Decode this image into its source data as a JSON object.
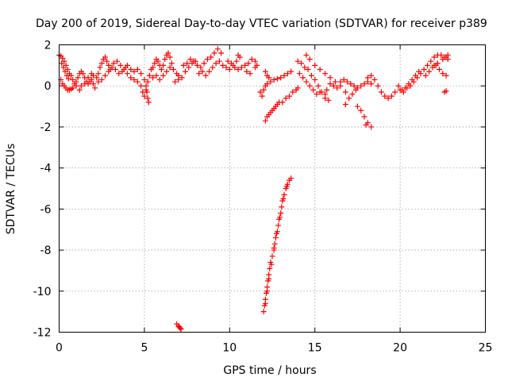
{
  "chart_data": {
    "type": "scatter",
    "title": "Day 200 of 2019, Sidereal Day-to-day VTEC variation (SDTVAR) for receiver p389",
    "xlabel": "GPS time / hours",
    "ylabel": "SDTVAR / TECUs",
    "xlim": [
      0,
      25
    ],
    "ylim": [
      -12,
      2
    ],
    "xticks": [
      "0",
      "5",
      "10",
      "15",
      "20",
      "25"
    ],
    "xtick_values": [
      0,
      5,
      10,
      15,
      20,
      25
    ],
    "yticks": [
      "2",
      "0",
      "-2",
      "-4",
      "-6",
      "-8",
      "-10",
      "-12"
    ],
    "ytick_values": [
      2,
      0,
      -2,
      -4,
      -6,
      -8,
      -10,
      -12
    ],
    "grid": true,
    "marker": "+",
    "color": "#ff0000",
    "series": [
      {
        "name": "SDTVAR",
        "points": [
          [
            0.0,
            1.5
          ],
          [
            0.1,
            1.45
          ],
          [
            0.2,
            1.35
          ],
          [
            0.3,
            1.2
          ],
          [
            0.4,
            1.0
          ],
          [
            0.5,
            0.8
          ],
          [
            0.6,
            0.6
          ],
          [
            0.7,
            0.5
          ],
          [
            0.8,
            0.3
          ],
          [
            0.9,
            0.1
          ],
          [
            1.0,
            0.0
          ],
          [
            0.1,
            0.3
          ],
          [
            0.2,
            0.1
          ],
          [
            0.3,
            0.0
          ],
          [
            0.4,
            -0.1
          ],
          [
            0.5,
            -0.2
          ],
          [
            0.6,
            -0.2
          ],
          [
            0.7,
            -0.15
          ],
          [
            0.8,
            -0.1
          ],
          [
            0.15,
            1.1
          ],
          [
            0.25,
            0.9
          ],
          [
            0.35,
            0.7
          ],
          [
            0.45,
            0.5
          ],
          [
            0.55,
            0.35
          ],
          [
            1.0,
            0.2
          ],
          [
            1.1,
            0.4
          ],
          [
            1.2,
            0.6
          ],
          [
            1.3,
            0.7
          ],
          [
            1.4,
            0.6
          ],
          [
            1.5,
            0.4
          ],
          [
            1.6,
            0.2
          ],
          [
            1.7,
            0.1
          ],
          [
            1.8,
            0.2
          ],
          [
            1.9,
            0.3
          ],
          [
            2.0,
            0.5
          ],
          [
            1.2,
            -0.2
          ],
          [
            1.3,
            0.0
          ],
          [
            1.5,
            0.1
          ],
          [
            1.7,
            0.4
          ],
          [
            1.9,
            0.6
          ],
          [
            2.0,
            0.1
          ],
          [
            2.1,
            -0.1
          ],
          [
            2.2,
            0.4
          ],
          [
            2.3,
            0.6
          ],
          [
            2.4,
            0.9
          ],
          [
            2.5,
            1.1
          ],
          [
            2.6,
            1.3
          ],
          [
            2.7,
            1.4
          ],
          [
            2.8,
            1.2
          ],
          [
            2.9,
            1.0
          ],
          [
            3.0,
            0.8
          ],
          [
            2.3,
            0.2
          ],
          [
            2.5,
            0.3
          ],
          [
            2.7,
            0.5
          ],
          [
            2.9,
            0.7
          ],
          [
            3.1,
            0.9
          ],
          [
            3.3,
            0.8
          ],
          [
            3.5,
            0.6
          ],
          [
            3.7,
            0.7
          ],
          [
            3.9,
            0.9
          ],
          [
            3.2,
            1.1
          ],
          [
            3.4,
            1.2
          ],
          [
            3.6,
            1.0
          ],
          [
            3.8,
            0.8
          ],
          [
            4.0,
            0.6
          ],
          [
            4.2,
            0.4
          ],
          [
            4.4,
            0.3
          ],
          [
            4.6,
            0.2
          ],
          [
            4.8,
            0.0
          ],
          [
            4.0,
            1.0
          ],
          [
            4.2,
            0.8
          ],
          [
            4.4,
            0.7
          ],
          [
            4.6,
            0.8
          ],
          [
            4.8,
            0.6
          ],
          [
            5.0,
            0.3
          ],
          [
            5.1,
            0.0
          ],
          [
            5.15,
            -0.3
          ],
          [
            5.2,
            -0.6
          ],
          [
            5.25,
            -0.8
          ],
          [
            4.9,
            -0.3
          ],
          [
            5.0,
            -0.5
          ],
          [
            5.1,
            -0.2
          ],
          [
            5.2,
            0.2
          ],
          [
            5.3,
            0.5
          ],
          [
            5.4,
            0.8
          ],
          [
            5.5,
            0.9
          ],
          [
            5.6,
            1.1
          ],
          [
            5.7,
            1.3
          ],
          [
            5.8,
            1.2
          ],
          [
            5.9,
            1.0
          ],
          [
            6.0,
            0.8
          ],
          [
            6.1,
            1.0
          ],
          [
            6.2,
            1.3
          ],
          [
            6.3,
            1.5
          ],
          [
            6.4,
            1.6
          ],
          [
            6.5,
            1.4
          ],
          [
            6.6,
            1.1
          ],
          [
            5.5,
            0.4
          ],
          [
            5.7,
            0.5
          ],
          [
            5.9,
            0.3
          ],
          [
            6.1,
            0.5
          ],
          [
            6.3,
            0.7
          ],
          [
            6.5,
            0.9
          ],
          [
            6.7,
            0.8
          ],
          [
            6.9,
            0.6
          ],
          [
            7.0,
            0.5
          ],
          [
            6.8,
            0.2
          ],
          [
            7.0,
            0.3
          ],
          [
            7.2,
            0.4
          ],
          [
            7.4,
            0.7
          ],
          [
            7.6,
            0.9
          ],
          [
            7.8,
            1.1
          ],
          [
            8.0,
            1.2
          ],
          [
            7.3,
            1.0
          ],
          [
            7.5,
            1.1
          ],
          [
            7.7,
            1.3
          ],
          [
            7.9,
            1.2
          ],
          [
            8.1,
            1.0
          ],
          [
            8.3,
            0.9
          ],
          [
            8.5,
            1.1
          ],
          [
            8.7,
            1.3
          ],
          [
            8.9,
            1.4
          ],
          [
            9.1,
            1.6
          ],
          [
            9.3,
            1.8
          ],
          [
            9.5,
            1.6
          ],
          [
            8.2,
            0.6
          ],
          [
            8.4,
            0.7
          ],
          [
            8.6,
            0.5
          ],
          [
            8.8,
            0.7
          ],
          [
            9.0,
            0.9
          ],
          [
            9.2,
            1.1
          ],
          [
            9.4,
            1.2
          ],
          [
            9.6,
            1.0
          ],
          [
            9.8,
            0.9
          ],
          [
            10.0,
            0.8
          ],
          [
            10.2,
            1.0
          ],
          [
            10.4,
            1.2
          ],
          [
            9.9,
            1.2
          ],
          [
            10.1,
            1.1
          ],
          [
            10.3,
            0.9
          ],
          [
            10.5,
            0.8
          ],
          [
            10.7,
            0.9
          ],
          [
            10.9,
            1.0
          ],
          [
            11.1,
            1.1
          ],
          [
            11.3,
            1.3
          ],
          [
            11.5,
            1.2
          ],
          [
            10.5,
            1.5
          ],
          [
            10.6,
            1.4
          ],
          [
            11.0,
            0.7
          ],
          [
            11.2,
            0.6
          ],
          [
            11.5,
            0.9
          ],
          [
            11.6,
            1.0
          ],
          [
            11.8,
            -0.3
          ],
          [
            11.9,
            -0.5
          ],
          [
            12.0,
            -0.2
          ],
          [
            12.1,
            0.0
          ],
          [
            12.2,
            0.1
          ],
          [
            12.4,
            0.2
          ],
          [
            12.6,
            0.3
          ],
          [
            12.8,
            0.35
          ],
          [
            13.0,
            0.4
          ],
          [
            13.2,
            0.5
          ],
          [
            13.4,
            0.6
          ],
          [
            13.6,
            0.7
          ],
          [
            12.1,
            0.7
          ],
          [
            12.2,
            0.5
          ],
          [
            12.3,
            0.4
          ],
          [
            12.1,
            -1.7
          ],
          [
            12.2,
            -1.5
          ],
          [
            12.3,
            -1.4
          ],
          [
            12.4,
            -1.3
          ],
          [
            12.5,
            -1.2
          ],
          [
            12.6,
            -1.1
          ],
          [
            12.7,
            -1.0
          ],
          [
            12.8,
            -0.9
          ],
          [
            12.9,
            -0.8
          ],
          [
            13.1,
            -0.8
          ],
          [
            13.3,
            -0.6
          ],
          [
            13.5,
            -0.5
          ],
          [
            13.7,
            -0.3
          ],
          [
            13.9,
            -0.2
          ],
          [
            14.0,
            -0.1
          ],
          [
            14.0,
            1.2
          ],
          [
            14.2,
            1.1
          ],
          [
            14.4,
            0.9
          ],
          [
            14.6,
            0.8
          ],
          [
            14.8,
            0.5
          ],
          [
            15.0,
            0.3
          ],
          [
            15.2,
            0.0
          ],
          [
            15.4,
            -0.3
          ],
          [
            15.6,
            -0.6
          ],
          [
            14.1,
            0.6
          ],
          [
            14.3,
            0.4
          ],
          [
            14.5,
            0.2
          ],
          [
            14.7,
            0.0
          ],
          [
            14.9,
            -0.2
          ],
          [
            15.1,
            -0.4
          ],
          [
            15.3,
            -0.3
          ],
          [
            14.5,
            1.5
          ],
          [
            14.7,
            1.3
          ],
          [
            15.0,
            1.0
          ],
          [
            15.3,
            0.8
          ],
          [
            15.6,
            0.6
          ],
          [
            15.9,
            0.4
          ],
          [
            16.2,
            0.2
          ],
          [
            16.5,
            0.0
          ],
          [
            16.8,
            -0.3
          ],
          [
            15.8,
            -0.7
          ],
          [
            15.6,
            -0.4
          ],
          [
            15.7,
            -0.2
          ],
          [
            15.9,
            0.1
          ],
          [
            16.1,
            0.0
          ],
          [
            16.3,
            -0.1
          ],
          [
            16.5,
            0.2
          ],
          [
            16.7,
            0.3
          ],
          [
            16.9,
            0.2
          ],
          [
            17.1,
            0.1
          ],
          [
            17.3,
            0.0
          ],
          [
            17.5,
            -0.1
          ],
          [
            17.7,
            0.0
          ],
          [
            17.9,
            0.1
          ],
          [
            18.1,
            0.2
          ],
          [
            18.3,
            0.1
          ],
          [
            16.8,
            -0.9
          ],
          [
            17.0,
            -0.6
          ],
          [
            17.2,
            -0.4
          ],
          [
            17.4,
            -0.2
          ],
          [
            17.5,
            -1.0
          ],
          [
            17.7,
            -1.2
          ],
          [
            17.9,
            -1.5
          ],
          [
            18.1,
            -1.8
          ],
          [
            18.3,
            -2.0
          ],
          [
            18.0,
            -1.9
          ],
          [
            18.1,
            0.4
          ],
          [
            18.3,
            0.5
          ],
          [
            18.5,
            0.3
          ],
          [
            18.7,
            0.0
          ],
          [
            18.9,
            -0.3
          ],
          [
            19.1,
            -0.5
          ],
          [
            19.3,
            -0.6
          ],
          [
            19.5,
            -0.5
          ],
          [
            19.7,
            -0.3
          ],
          [
            19.9,
            0.0
          ],
          [
            20.1,
            -0.2
          ],
          [
            20.3,
            -0.1
          ],
          [
            20.5,
            0.1
          ],
          [
            20.7,
            0.3
          ],
          [
            20.9,
            0.5
          ],
          [
            21.1,
            0.7
          ],
          [
            20.0,
            -0.2
          ],
          [
            20.2,
            -0.3
          ],
          [
            20.4,
            -0.1
          ],
          [
            20.6,
            0.0
          ],
          [
            20.8,
            0.2
          ],
          [
            21.0,
            0.4
          ],
          [
            21.2,
            0.6
          ],
          [
            21.4,
            0.8
          ],
          [
            21.6,
            1.0
          ],
          [
            21.8,
            1.2
          ],
          [
            22.0,
            1.4
          ],
          [
            22.2,
            1.5
          ],
          [
            22.4,
            1.5
          ],
          [
            22.6,
            1.4
          ],
          [
            22.8,
            1.3
          ],
          [
            21.5,
            0.5
          ],
          [
            21.7,
            0.7
          ],
          [
            21.9,
            0.9
          ],
          [
            22.1,
            1.0
          ],
          [
            22.3,
            0.8
          ],
          [
            22.5,
            0.6
          ],
          [
            22.7,
            0.5
          ],
          [
            22.0,
            1.0
          ],
          [
            22.2,
            1.1
          ],
          [
            22.5,
            1.3
          ],
          [
            22.7,
            1.4
          ],
          [
            22.8,
            1.5
          ],
          [
            22.6,
            -0.3
          ],
          [
            22.7,
            -0.25
          ],
          [
            6.9,
            -11.6
          ],
          [
            7.0,
            -11.7
          ],
          [
            7.05,
            -11.75
          ],
          [
            7.1,
            -11.8
          ],
          [
            7.15,
            -11.85
          ],
          [
            12.0,
            -11.0
          ],
          [
            12.05,
            -10.7
          ],
          [
            12.1,
            -10.4
          ],
          [
            12.15,
            -10.1
          ],
          [
            12.2,
            -9.8
          ],
          [
            12.25,
            -9.5
          ],
          [
            12.3,
            -9.2
          ],
          [
            12.35,
            -8.9
          ],
          [
            12.4,
            -8.6
          ],
          [
            12.5,
            -8.3
          ],
          [
            12.6,
            -8.0
          ],
          [
            12.65,
            -7.7
          ],
          [
            12.7,
            -7.4
          ],
          [
            12.8,
            -7.1
          ],
          [
            12.85,
            -6.8
          ],
          [
            12.9,
            -6.5
          ],
          [
            13.0,
            -6.2
          ],
          [
            13.05,
            -5.9
          ],
          [
            13.1,
            -5.6
          ],
          [
            13.2,
            -5.3
          ],
          [
            13.3,
            -5.0
          ],
          [
            13.4,
            -4.8
          ],
          [
            13.5,
            -4.6
          ],
          [
            13.6,
            -4.5
          ],
          [
            12.1,
            -10.6
          ],
          [
            12.2,
            -10.0
          ],
          [
            12.3,
            -9.4
          ],
          [
            12.45,
            -8.7
          ],
          [
            12.6,
            -7.9
          ],
          [
            12.75,
            -7.2
          ],
          [
            12.95,
            -6.4
          ],
          [
            13.15,
            -5.5
          ],
          [
            13.35,
            -4.9
          ]
        ]
      }
    ]
  }
}
